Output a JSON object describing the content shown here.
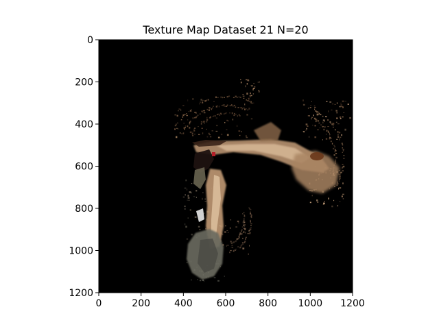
{
  "chart_data": {
    "type": "heatmap",
    "title": "Texture Map Dataset 21 N=20",
    "xlabel": "",
    "ylabel": "",
    "xlim": [
      0,
      1200
    ],
    "ylim": [
      1200,
      0
    ],
    "x_ticks": [
      0,
      200,
      400,
      600,
      800,
      1000,
      1200
    ],
    "y_ticks": [
      0,
      200,
      400,
      600,
      800,
      1000,
      1200
    ],
    "x_tick_labels": [
      "0",
      "200",
      "400",
      "600",
      "800",
      "1000",
      "1200"
    ],
    "y_tick_labels": [
      "0",
      "200",
      "400",
      "600",
      "800",
      "1000",
      "1200"
    ],
    "grid": false,
    "background_color": "#000000",
    "image_content": "sparse texture-mapped point cloud of a room scene on black background"
  }
}
